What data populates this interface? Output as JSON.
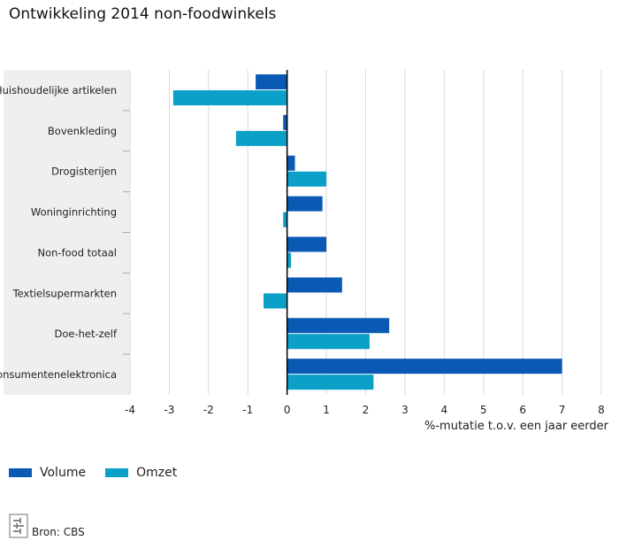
{
  "title": "Ontwikkeling 2014 non-foodwinkels",
  "chart_data": {
    "type": "bar",
    "orientation": "horizontal",
    "categories": [
      "Huishoudelijke artikelen",
      "Bovenkleding",
      "Drogisterijen",
      "Woninginrichting",
      "Non-food totaal",
      "Textielsupermarkten",
      "Doe-het-zelf",
      "Consumentenelektronica"
    ],
    "series": [
      {
        "name": "Volume",
        "color": "#0a59b4",
        "values": [
          -0.8,
          -0.1,
          0.2,
          0.9,
          1.0,
          1.4,
          2.6,
          7.0
        ]
      },
      {
        "name": "Omzet",
        "color": "#0aa0c8",
        "values": [
          -2.9,
          -1.3,
          1.0,
          -0.1,
          0.1,
          -0.6,
          2.1,
          2.2
        ]
      }
    ],
    "xlim": [
      -4,
      8
    ],
    "xticks": [
      "-4",
      "-3",
      "-2",
      "-1",
      "0",
      "1",
      "2",
      "3",
      "4",
      "5",
      "6",
      "7",
      "8"
    ],
    "xlabel": "%-mutatie t.o.v. een jaar eerder",
    "grid": true,
    "legend_position": "bottom-left"
  },
  "source": "Bron: CBS",
  "logo_text": "cbs"
}
